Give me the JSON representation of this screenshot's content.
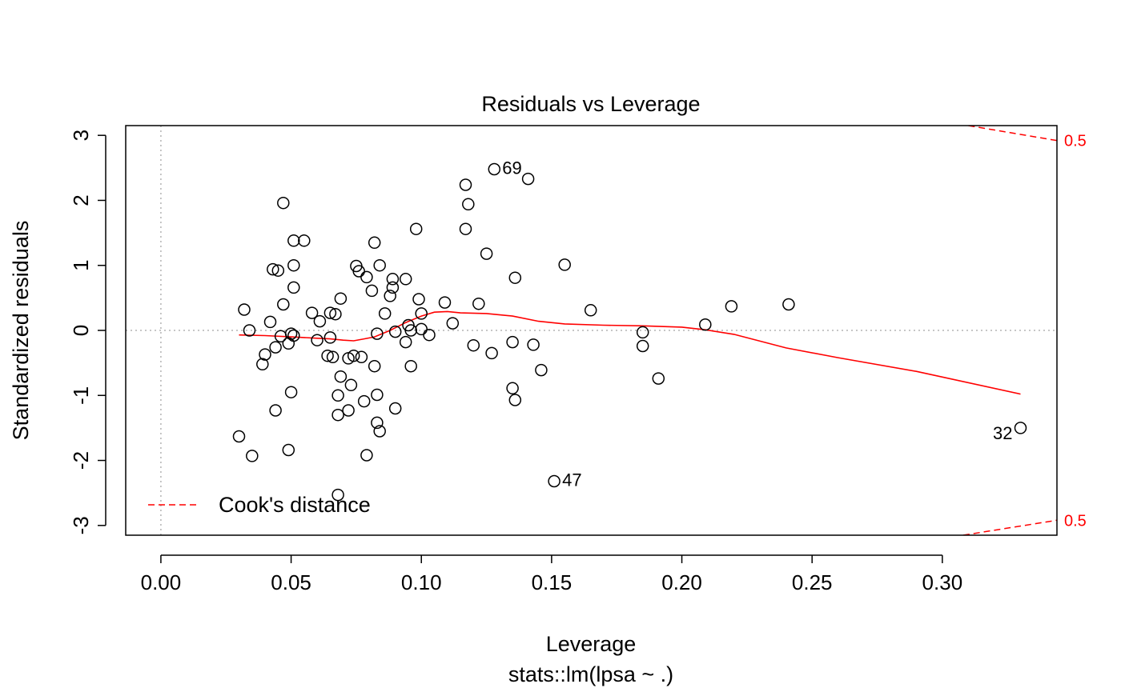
{
  "chart_data": {
    "type": "scatter",
    "title": "Residuals vs Leverage",
    "xlabel": "Leverage",
    "ylabel": "Standardized residuals",
    "subtitle": "stats::lm(lpsa ~ .)",
    "xlim": [
      -0.0135,
      0.344
    ],
    "ylim": [
      -3.15,
      3.15
    ],
    "x_ticks": [
      "0.00",
      "0.05",
      "0.10",
      "0.15",
      "0.20",
      "0.25",
      "0.30"
    ],
    "y_ticks": [
      "-3",
      "-2",
      "-1",
      "0",
      "1",
      "2",
      "3"
    ],
    "legend": {
      "label": "Cook's distance",
      "position": "bottom-left",
      "color": "#ff0000"
    },
    "colors": {
      "points": "#000000",
      "smooth": "#ff0000",
      "cook": "#ff0000",
      "reference": "#b3b3b3"
    },
    "points": [
      [
        0.03,
        -1.63
      ],
      [
        0.032,
        0.32
      ],
      [
        0.034,
        0.0
      ],
      [
        0.035,
        -1.93
      ],
      [
        0.039,
        -0.52
      ],
      [
        0.04,
        -0.37
      ],
      [
        0.042,
        0.13
      ],
      [
        0.043,
        0.94
      ],
      [
        0.044,
        -0.26
      ],
      [
        0.044,
        -1.23
      ],
      [
        0.045,
        0.92
      ],
      [
        0.046,
        -0.09
      ],
      [
        0.047,
        0.4
      ],
      [
        0.047,
        1.96
      ],
      [
        0.049,
        -0.2
      ],
      [
        0.049,
        -1.84
      ],
      [
        0.05,
        -0.05
      ],
      [
        0.05,
        -0.95
      ],
      [
        0.051,
        0.66
      ],
      [
        0.051,
        1.0
      ],
      [
        0.051,
        1.38
      ],
      [
        0.051,
        -0.08
      ],
      [
        0.055,
        1.38
      ],
      [
        0.058,
        0.27
      ],
      [
        0.06,
        -0.15
      ],
      [
        0.061,
        0.14
      ],
      [
        0.064,
        -0.39
      ],
      [
        0.065,
        0.27
      ],
      [
        0.065,
        -0.11
      ],
      [
        0.066,
        -0.41
      ],
      [
        0.067,
        0.25
      ],
      [
        0.068,
        -1.3
      ],
      [
        0.068,
        -1.0
      ],
      [
        0.068,
        -2.53
      ],
      [
        0.069,
        -0.71
      ],
      [
        0.069,
        0.49
      ],
      [
        0.072,
        -0.43
      ],
      [
        0.072,
        -1.23
      ],
      [
        0.073,
        -0.84
      ],
      [
        0.074,
        -0.39
      ],
      [
        0.075,
        0.99
      ],
      [
        0.076,
        0.91
      ],
      [
        0.077,
        -0.41
      ],
      [
        0.078,
        -1.09
      ],
      [
        0.079,
        -1.92
      ],
      [
        0.079,
        0.82
      ],
      [
        0.081,
        0.61
      ],
      [
        0.082,
        -0.55
      ],
      [
        0.082,
        1.35
      ],
      [
        0.083,
        -1.42
      ],
      [
        0.083,
        -0.99
      ],
      [
        0.083,
        -0.05
      ],
      [
        0.084,
        -1.55
      ],
      [
        0.084,
        1.0
      ],
      [
        0.086,
        0.26
      ],
      [
        0.088,
        0.53
      ],
      [
        0.089,
        0.79
      ],
      [
        0.089,
        0.66
      ],
      [
        0.09,
        -0.02
      ],
      [
        0.09,
        -1.2
      ],
      [
        0.094,
        0.79
      ],
      [
        0.094,
        -0.18
      ],
      [
        0.095,
        0.08
      ],
      [
        0.096,
        0.0
      ],
      [
        0.096,
        -0.55
      ],
      [
        0.098,
        1.56
      ],
      [
        0.099,
        0.48
      ],
      [
        0.1,
        0.26
      ],
      [
        0.1,
        0.02
      ],
      [
        0.103,
        -0.07
      ],
      [
        0.109,
        0.43
      ],
      [
        0.112,
        0.11
      ],
      [
        0.117,
        2.24
      ],
      [
        0.117,
        1.56
      ],
      [
        0.118,
        1.94
      ],
      [
        0.12,
        -0.23
      ],
      [
        0.122,
        0.41
      ],
      [
        0.125,
        1.18
      ],
      [
        0.127,
        -0.35
      ],
      [
        0.128,
        2.48
      ],
      [
        0.135,
        -0.89
      ],
      [
        0.135,
        -0.18
      ],
      [
        0.136,
        0.81
      ],
      [
        0.136,
        -1.07
      ],
      [
        0.141,
        2.33
      ],
      [
        0.143,
        -0.22
      ],
      [
        0.146,
        -0.61
      ],
      [
        0.151,
        -2.32
      ],
      [
        0.155,
        1.01
      ],
      [
        0.165,
        0.31
      ],
      [
        0.185,
        -0.03
      ],
      [
        0.185,
        -0.24
      ],
      [
        0.191,
        -0.74
      ],
      [
        0.209,
        0.09
      ],
      [
        0.219,
        0.37
      ],
      [
        0.241,
        0.4
      ],
      [
        0.33,
        -1.5
      ]
    ],
    "labeled_points": [
      {
        "label": "69",
        "x": 0.128,
        "y": 2.48,
        "side": "right"
      },
      {
        "label": "47",
        "x": 0.151,
        "y": -2.32,
        "side": "right"
      },
      {
        "label": "32",
        "x": 0.33,
        "y": -1.5,
        "side": "left"
      }
    ],
    "smooth_line": [
      [
        0.03,
        -0.07
      ],
      [
        0.04,
        -0.08
      ],
      [
        0.05,
        -0.1
      ],
      [
        0.06,
        -0.12
      ],
      [
        0.065,
        -0.13
      ],
      [
        0.07,
        -0.15
      ],
      [
        0.074,
        -0.16
      ],
      [
        0.078,
        -0.13
      ],
      [
        0.082,
        -0.1
      ],
      [
        0.088,
        0.0
      ],
      [
        0.094,
        0.12
      ],
      [
        0.1,
        0.22
      ],
      [
        0.105,
        0.28
      ],
      [
        0.11,
        0.29
      ],
      [
        0.115,
        0.27
      ],
      [
        0.125,
        0.26
      ],
      [
        0.135,
        0.22
      ],
      [
        0.145,
        0.14
      ],
      [
        0.155,
        0.1
      ],
      [
        0.17,
        0.08
      ],
      [
        0.185,
        0.07
      ],
      [
        0.2,
        0.05
      ],
      [
        0.209,
        0.01
      ],
      [
        0.22,
        -0.06
      ],
      [
        0.24,
        -0.27
      ],
      [
        0.26,
        -0.42
      ],
      [
        0.29,
        -0.63
      ],
      [
        0.33,
        -0.98
      ]
    ],
    "cook_contours": [
      {
        "label": "0.5",
        "sign": 1,
        "points": [
          [
            0.31,
            3.15
          ],
          [
            0.344,
            2.92
          ]
        ]
      },
      {
        "label": "0.5",
        "sign": -1,
        "points": [
          [
            0.308,
            -3.15
          ],
          [
            0.344,
            -2.92
          ]
        ]
      }
    ],
    "cook_label_y": [
      2.92,
      -2.92
    ]
  }
}
